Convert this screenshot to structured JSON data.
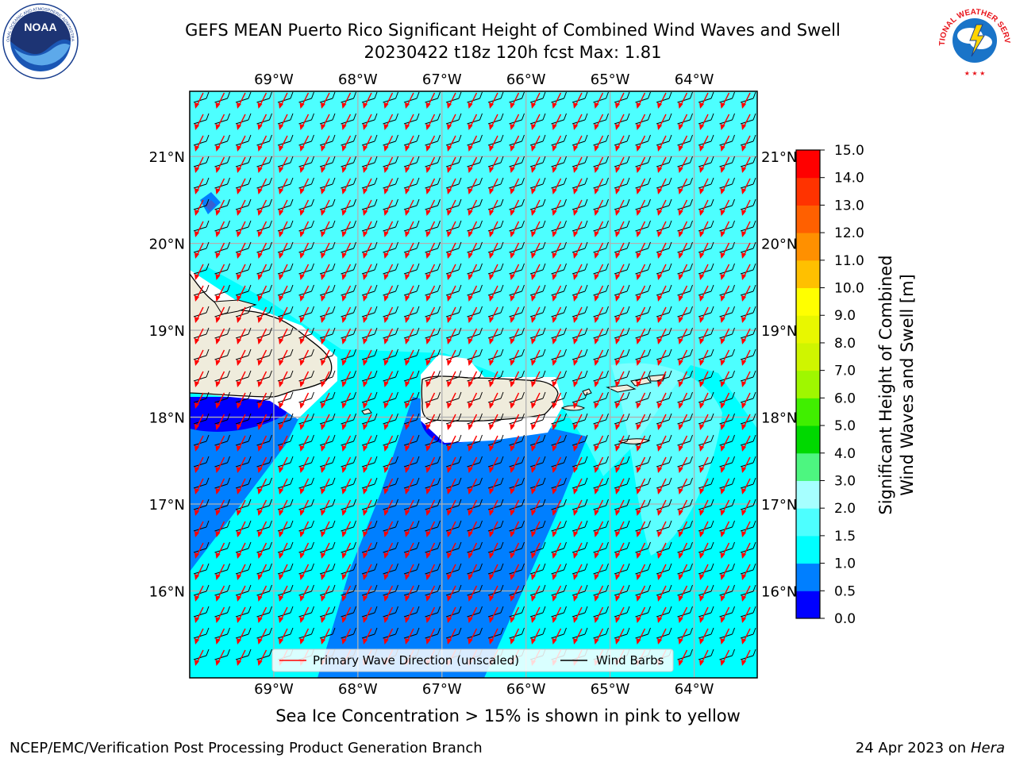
{
  "title_line1": "GEFS MEAN Puerto Rico Significant Height of Combined Wind Waves and Swell",
  "title_line2": "20230422 t18z 120h fcst   Max: 1.81",
  "map": {
    "lon_labels": [
      "69°W",
      "68°W",
      "67°W",
      "66°W",
      "65°W",
      "64°W"
    ],
    "lat_labels": [
      "21°N",
      "20°N",
      "19°N",
      "18°N",
      "17°N",
      "16°N"
    ],
    "lon_values": [
      -69,
      -68,
      -67,
      -66,
      -65,
      -64
    ],
    "lat_values": [
      21,
      20,
      19,
      18,
      17,
      16
    ],
    "lon_range": [
      -70,
      -63.25
    ],
    "lat_range": [
      15,
      21.75
    ],
    "ocean_color": "#00ffff",
    "land_color": "#efecdc"
  },
  "legend": {
    "primary_wave_label": "Primary Wave Direction (unscaled)",
    "wind_barbs_label": "Wind Barbs",
    "primary_wave_color": "#ff0000",
    "wind_barbs_color": "#000000"
  },
  "colorbar": {
    "label_line1": "Significant Height of Combined",
    "label_line2": "Wind Waves and Swell [m]",
    "ticks": [
      "0.0",
      "0.5",
      "1.0",
      "1.5",
      "2.0",
      "3.0",
      "4.0",
      "5.0",
      "6.0",
      "7.0",
      "8.0",
      "9.0",
      "10.0",
      "11.0",
      "12.0",
      "13.0",
      "14.0",
      "15.0"
    ],
    "colors": [
      "#0000ff",
      "#007fff",
      "#00ffff",
      "#4dffff",
      "#a6ffff",
      "#4df680",
      "#00d900",
      "#40ef00",
      "#9ff700",
      "#cff500",
      "#e8f700",
      "#ffff00",
      "#ffc000",
      "#ff9000",
      "#ff6000",
      "#ff3300",
      "#ff0000"
    ]
  },
  "footer": {
    "ice_note": "Sea Ice Concentration > 15% is shown in pink to yellow",
    "credit": "NCEP/EMC/Verification Post Processing Product Generation Branch",
    "date": "24 Apr 2023 on",
    "host": "Hera"
  },
  "logos": {
    "noaa_text": "NOAA",
    "nws_text": "NATIONAL WEATHER SERVICE"
  }
}
